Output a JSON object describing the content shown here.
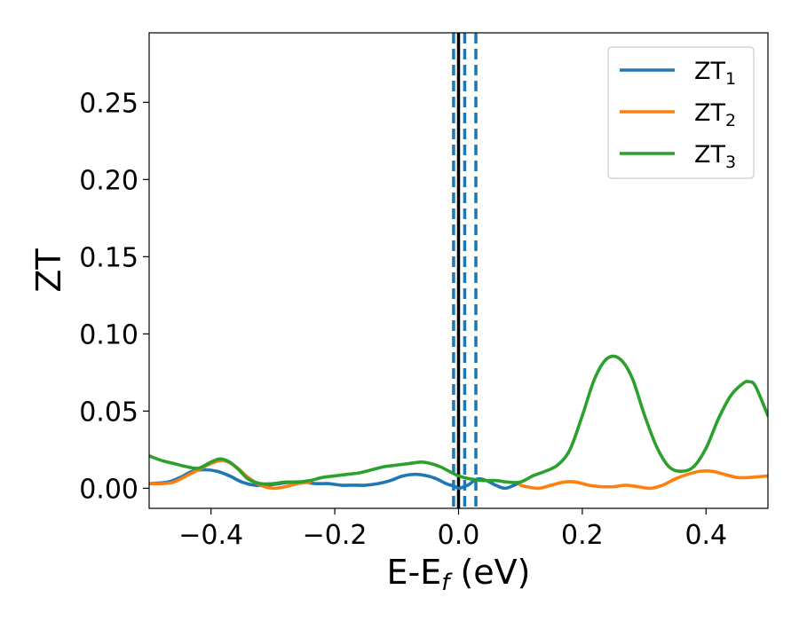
{
  "chart_data": {
    "type": "line",
    "xlabel": "E-E",
    "xlabel_sub": "f",
    "xlabel_unit": " (eV)",
    "ylabel": "ZT",
    "xlim": [
      -0.5,
      0.5
    ],
    "ylim": [
      -0.013,
      0.295
    ],
    "xticks": [
      -0.4,
      -0.2,
      0.0,
      0.2,
      0.4
    ],
    "xtick_labels": [
      "−0.4",
      "−0.2",
      "0.0",
      "0.2",
      "0.4"
    ],
    "yticks": [
      0.0,
      0.05,
      0.1,
      0.15,
      0.2,
      0.25
    ],
    "ytick_labels": [
      "0.00",
      "0.05",
      "0.10",
      "0.15",
      "0.20",
      "0.25"
    ],
    "legend_position": "top-right",
    "grid": false,
    "vlines": [
      {
        "x": 0.0,
        "color": "#000000",
        "style": "solid"
      },
      {
        "x": -0.008,
        "color": "#1f77b4",
        "style": "dashed"
      },
      {
        "x": 0.01,
        "color": "#1f77b4",
        "style": "dashed"
      },
      {
        "x": 0.028,
        "color": "#1f77b4",
        "style": "dashed"
      }
    ],
    "series": [
      {
        "name": "ZT",
        "name_sub": "1",
        "color": "#1f77b4",
        "x": [
          -0.5,
          -0.47,
          -0.45,
          -0.43,
          -0.41,
          -0.39,
          -0.37,
          -0.35,
          -0.33,
          -0.31,
          -0.29,
          -0.27,
          -0.25,
          -0.23,
          -0.21,
          -0.19,
          -0.17,
          -0.15,
          -0.13,
          -0.11,
          -0.09,
          -0.07,
          -0.05,
          -0.035,
          -0.02,
          -0.005,
          0.0,
          0.015,
          0.03,
          0.045,
          0.06,
          0.075,
          0.09,
          0.1
        ],
        "y": [
          0.003,
          0.004,
          0.007,
          0.011,
          0.012,
          0.011,
          0.008,
          0.004,
          0.002,
          0.002,
          0.003,
          0.004,
          0.004,
          0.003,
          0.003,
          0.002,
          0.002,
          0.002,
          0.003,
          0.005,
          0.008,
          0.009,
          0.008,
          0.006,
          0.003,
          0.001,
          0.0,
          0.002,
          0.006,
          0.005,
          0.002,
          0.0,
          0.002,
          0.004
        ]
      },
      {
        "name": "ZT",
        "name_sub": "2",
        "color": "#ff7f0e",
        "x": [
          -0.5,
          -0.48,
          -0.46,
          -0.44,
          -0.42,
          -0.4,
          -0.38,
          -0.36,
          -0.34,
          -0.32,
          -0.3,
          -0.28,
          -0.26,
          -0.24,
          -0.1,
          -0.08,
          0.1,
          0.11,
          0.13,
          0.15,
          0.17,
          0.19,
          0.21,
          0.23,
          0.25,
          0.27,
          0.29,
          0.31,
          0.33,
          0.35,
          0.37,
          0.39,
          0.41,
          0.43,
          0.45,
          0.47,
          0.5
        ],
        "y": [
          0.003,
          0.003,
          0.004,
          0.008,
          0.012,
          0.016,
          0.018,
          0.014,
          0.007,
          0.002,
          0.0,
          0.001,
          0.003,
          0.004,
          null,
          null,
          0.002,
          0.001,
          0.0,
          0.002,
          0.004,
          0.004,
          0.002,
          0.001,
          0.001,
          0.002,
          0.001,
          0.0,
          0.002,
          0.006,
          0.009,
          0.011,
          0.011,
          0.009,
          0.007,
          0.007,
          0.008
        ]
      },
      {
        "name": "ZT",
        "name_sub": "3",
        "color": "#2ca02c",
        "x": [
          -0.5,
          -0.48,
          -0.46,
          -0.44,
          -0.42,
          -0.4,
          -0.385,
          -0.37,
          -0.355,
          -0.34,
          -0.32,
          -0.3,
          -0.28,
          -0.26,
          -0.24,
          -0.22,
          -0.2,
          -0.18,
          -0.16,
          -0.14,
          -0.12,
          -0.1,
          -0.08,
          -0.06,
          -0.045,
          -0.03,
          -0.015,
          0.0,
          0.02,
          0.04,
          0.06,
          0.08,
          0.1,
          0.12,
          0.14,
          0.16,
          0.18,
          0.2,
          0.22,
          0.24,
          0.26,
          0.28,
          0.3,
          0.32,
          0.34,
          0.36,
          0.38,
          0.4,
          0.42,
          0.44,
          0.46,
          0.47,
          0.48,
          0.5
        ],
        "y": [
          0.021,
          0.018,
          0.016,
          0.014,
          0.013,
          0.017,
          0.019,
          0.017,
          0.012,
          0.006,
          0.003,
          0.003,
          0.004,
          0.004,
          0.005,
          0.007,
          0.008,
          0.009,
          0.01,
          0.012,
          0.014,
          0.015,
          0.016,
          0.017,
          0.016,
          0.014,
          0.011,
          0.008,
          0.006,
          0.005,
          0.005,
          0.004,
          0.004,
          0.008,
          0.011,
          0.015,
          0.025,
          0.047,
          0.071,
          0.084,
          0.084,
          0.072,
          0.048,
          0.027,
          0.014,
          0.011,
          0.014,
          0.026,
          0.045,
          0.06,
          0.068,
          0.069,
          0.066,
          0.047
        ]
      }
    ]
  }
}
